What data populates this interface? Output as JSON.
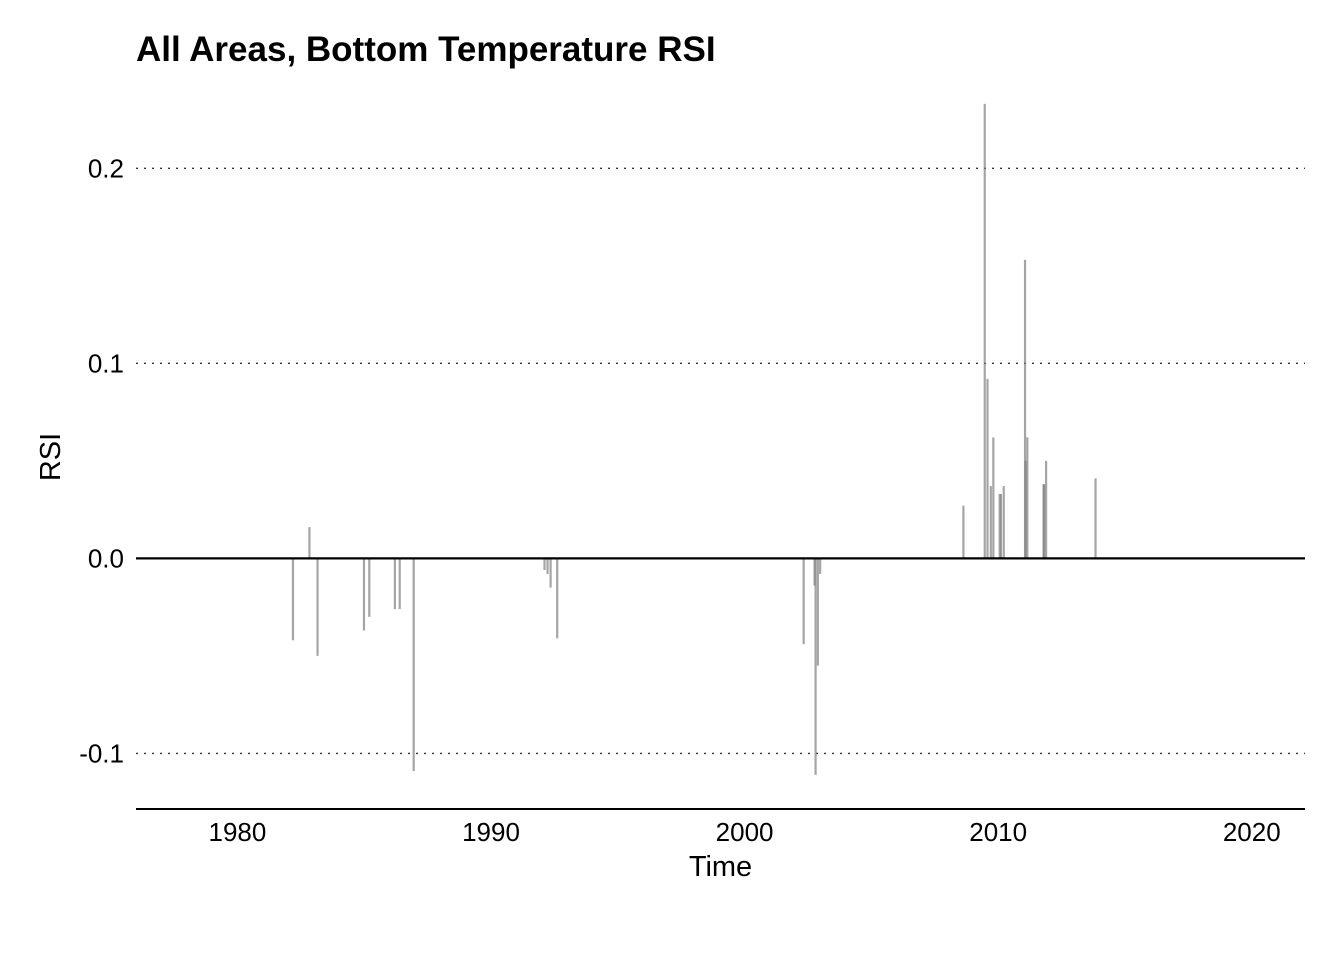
{
  "chart_data": {
    "type": "bar",
    "title": "All Areas, Bottom Temperature RSI",
    "xlabel": "Time",
    "ylabel": "RSI",
    "xlim": [
      1976,
      2022.1
    ],
    "ylim": [
      -0.128,
      0.235
    ],
    "x_ticks": [
      {
        "value": 1980,
        "label": "1980"
      },
      {
        "value": 1990,
        "label": "1990"
      },
      {
        "value": 2000,
        "label": "2000"
      },
      {
        "value": 2010,
        "label": "2010"
      },
      {
        "value": 2020,
        "label": "2020"
      }
    ],
    "y_ticks": [
      {
        "value": 0.2,
        "label": "0.2"
      },
      {
        "value": 0.1,
        "label": "0.1"
      },
      {
        "value": 0.0,
        "label": "0.0"
      },
      {
        "value": -0.1,
        "label": "-0.1"
      }
    ],
    "grid": "horizontal-dotted",
    "bar_color": "#7f7f7f",
    "series": [
      {
        "x": [
          1982.19,
          1982.84,
          1983.16,
          1984.99,
          1985.2,
          1986.21,
          1986.4,
          1986.95,
          1992.11,
          1992.23,
          1992.35,
          1992.61,
          2002.33,
          2002.8,
          2002.89,
          2002.98,
          2008.63,
          2009.47,
          2009.58,
          2009.81,
          2010.11,
          2010.22,
          2011.06,
          2011.15,
          2011.81,
          2011.89,
          2013.84
        ],
        "y": [
          -0.042,
          0.016,
          -0.05,
          -0.037,
          -0.03,
          -0.026,
          -0.026,
          -0.109,
          -0.006,
          -0.008,
          -0.015,
          -0.041,
          -0.044,
          -0.111,
          -0.055,
          -0.008,
          0.027,
          0.233,
          0.092,
          0.062,
          0.033,
          0.037,
          0.153,
          0.062,
          0.038,
          0.05,
          0.041
        ]
      },
      {
        "x": [
          2002.76,
          2009.71,
          2010.06,
          2011.08,
          2011.79
        ],
        "y": [
          -0.014,
          0.037,
          0.033,
          0.05,
          0.038
        ]
      }
    ]
  }
}
